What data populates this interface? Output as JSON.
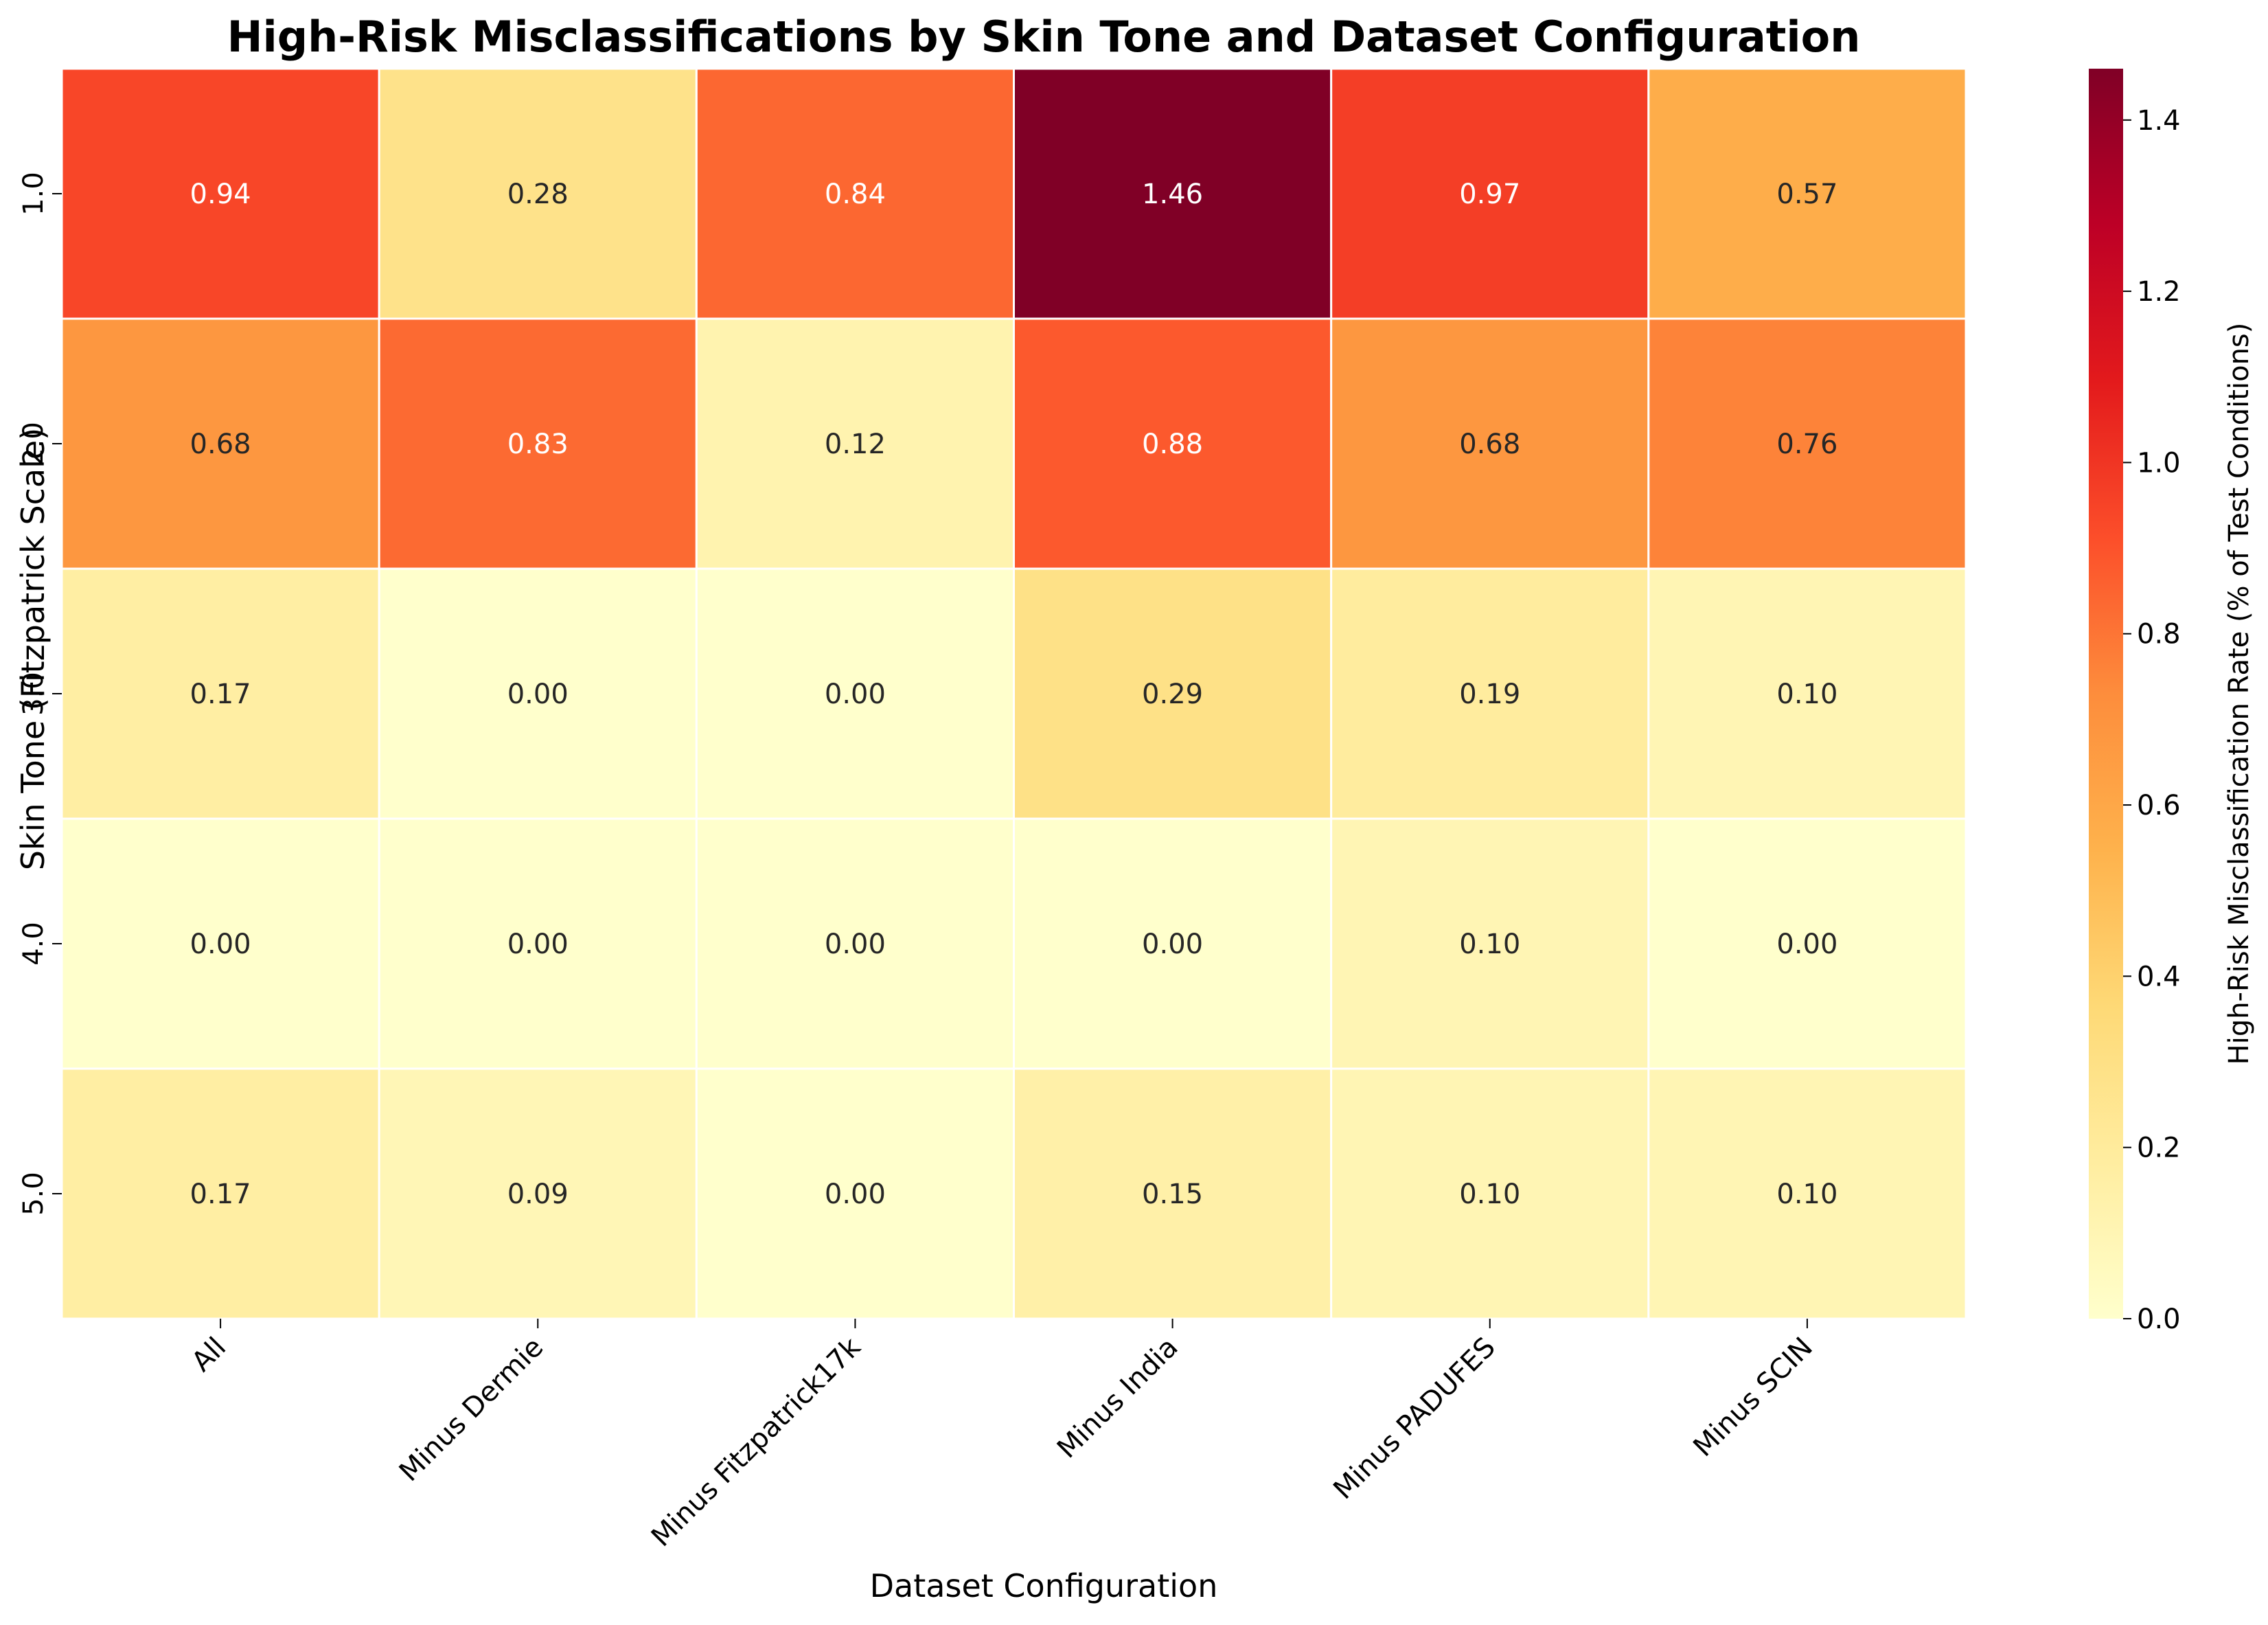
{
  "chart_data": {
    "type": "heatmap",
    "title": "High-Risk Misclassifications by Skin Tone and Dataset Configuration",
    "xlabel": "Dataset Configuration",
    "ylabel": "Skin Tone (Fitzpatrick Scale)",
    "x_categories": [
      "All",
      "Minus Dermie",
      "Minus Fitzpatrick17k",
      "Minus India",
      "Minus PADUFES",
      "Minus SCIN"
    ],
    "y_categories": [
      "1.0",
      "2.0",
      "3.0",
      "4.0",
      "5.0"
    ],
    "values": [
      [
        0.94,
        0.28,
        0.84,
        1.46,
        0.97,
        0.57
      ],
      [
        0.68,
        0.83,
        0.12,
        0.88,
        0.68,
        0.76
      ],
      [
        0.17,
        0.0,
        0.0,
        0.29,
        0.19,
        0.1
      ],
      [
        0.0,
        0.0,
        0.0,
        0.0,
        0.1,
        0.0
      ],
      [
        0.17,
        0.09,
        0.0,
        0.15,
        0.1,
        0.1
      ]
    ],
    "value_format": "2 decimals",
    "colormap": "YlOrRd",
    "colormap_stops": [
      "#ffffcc",
      "#ffeda0",
      "#fed976",
      "#feb24c",
      "#fd8d3c",
      "#fc4e2a",
      "#e31a1c",
      "#bd0026",
      "#800026"
    ],
    "cell_border_color": "#ffffff",
    "vmin": 0.0,
    "vmax": 1.46,
    "colorbar": {
      "label": "High-Risk Misclassification Rate (% of Test Conditions)",
      "ticks": [
        "0.0",
        "0.2",
        "0.4",
        "0.6",
        "0.8",
        "1.0",
        "1.2",
        "1.4"
      ],
      "placement": "right"
    },
    "grid": false,
    "legend": "none"
  }
}
